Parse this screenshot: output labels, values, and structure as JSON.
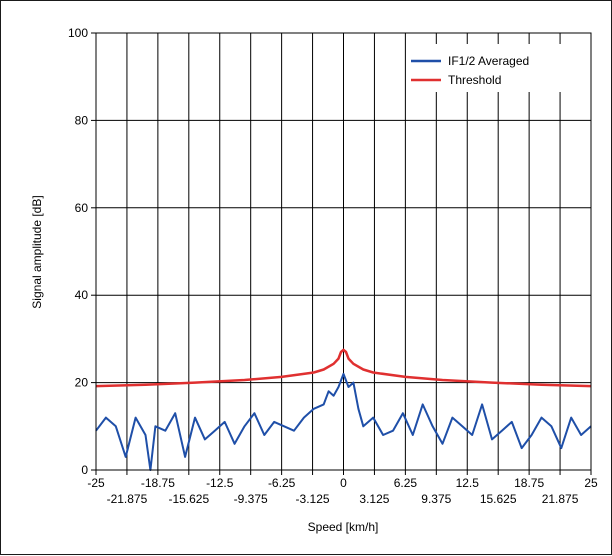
{
  "chart_data": {
    "type": "line",
    "xlabel": "Speed [km/h]",
    "ylabel": "Signal amplitude [dB]",
    "xlim": [
      -25,
      25
    ],
    "ylim": [
      0,
      100
    ],
    "grid": true,
    "legend_position": "top-right",
    "x_ticks_upper": [
      "-25",
      "-18.75",
      "-12.5",
      "-6.25",
      "0",
      "6.25",
      "12.5",
      "18.75",
      "25"
    ],
    "x_ticks_lower": [
      "-21.875",
      "-15.625",
      "-9.375",
      "-3.125",
      "3.125",
      "9.375",
      "15.625",
      "21.875"
    ],
    "y_ticks": [
      "0",
      "20",
      "40",
      "60",
      "80",
      "100"
    ],
    "series": [
      {
        "name": "IF1/2 Averaged",
        "color": "#1f4fa8",
        "x": [
          -25,
          -24,
          -23,
          -22,
          -21,
          -20,
          -19.5,
          -19,
          -18,
          -17,
          -16,
          -15,
          -14,
          -13,
          -12,
          -11,
          -10,
          -9,
          -8,
          -7,
          -6,
          -5,
          -4,
          -3,
          -2,
          -1.5,
          -1,
          -0.5,
          0,
          0.5,
          1,
          1.5,
          2,
          3,
          4,
          5,
          6,
          7,
          8,
          9,
          10,
          11,
          12,
          13,
          14,
          15,
          16,
          17,
          18,
          19,
          20,
          21,
          22,
          23,
          24,
          25
        ],
        "y": [
          9,
          12,
          10,
          3,
          12,
          8,
          0,
          10,
          9,
          13,
          3,
          12,
          7,
          9,
          11,
          6,
          10,
          13,
          8,
          11,
          10,
          9,
          12,
          14,
          15,
          18,
          17,
          19,
          22,
          19,
          20,
          14,
          10,
          12,
          8,
          9,
          13,
          8,
          15,
          10,
          6,
          12,
          10,
          8,
          15,
          7,
          9,
          11,
          5,
          8,
          12,
          10,
          5,
          12,
          8,
          10
        ]
      },
      {
        "name": "Threshold",
        "color": "#e03030",
        "x": [
          -25,
          -20,
          -15,
          -10,
          -6.25,
          -3,
          -2,
          -1,
          -0.5,
          -0.25,
          0,
          0.25,
          0.5,
          1,
          2,
          3,
          6.25,
          10,
          15,
          20,
          25
        ],
        "y": [
          19.2,
          19.5,
          20.0,
          20.6,
          21.3,
          22.3,
          23.0,
          24.3,
          25.5,
          27.0,
          27.5,
          27.0,
          25.5,
          24.3,
          23.0,
          22.3,
          21.3,
          20.6,
          20.0,
          19.5,
          19.2
        ]
      }
    ]
  }
}
